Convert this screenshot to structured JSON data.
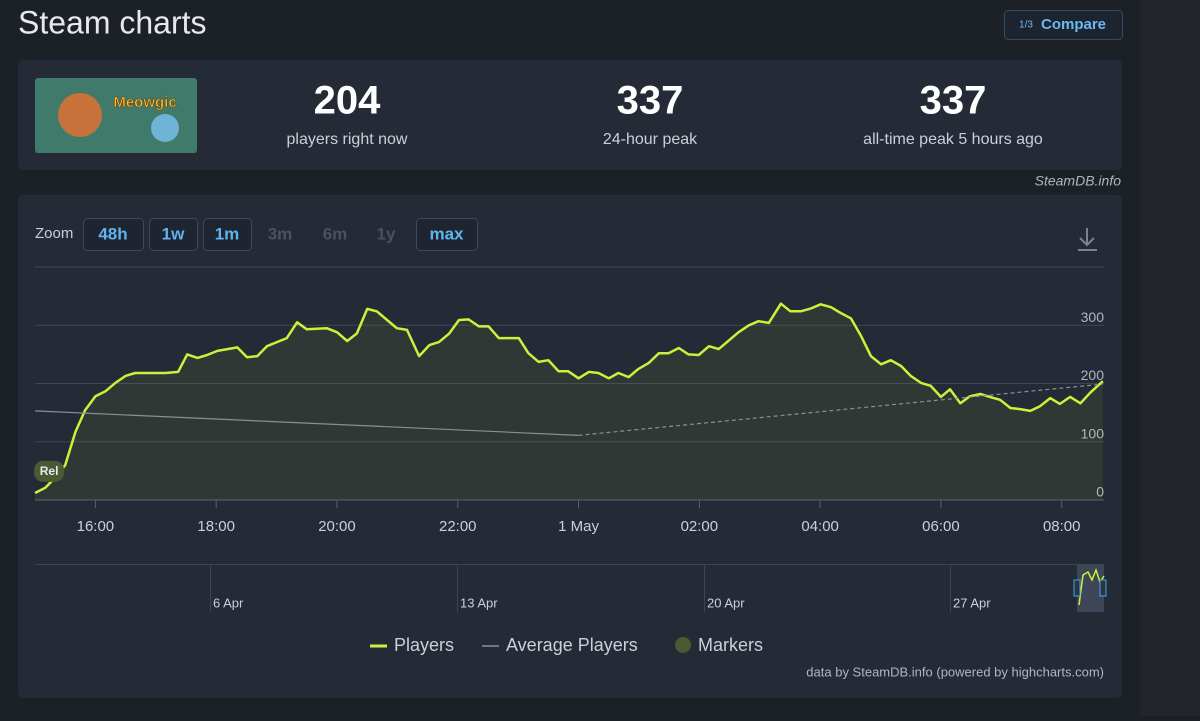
{
  "header": {
    "title": "Steam charts",
    "compare_icon": "1/3",
    "compare": "Compare"
  },
  "game": {
    "image_text": "Meowgic"
  },
  "stats": [
    {
      "value": "204",
      "label": "players right now"
    },
    {
      "value": "337",
      "label": "24-hour peak"
    },
    {
      "value": "337",
      "label": "all-time peak 5 hours ago"
    }
  ],
  "credit": "SteamDB.info",
  "zoom": {
    "label": "Zoom",
    "buttons": [
      {
        "label": "48h",
        "enabled": true
      },
      {
        "label": "1w",
        "enabled": true
      },
      {
        "label": "1m",
        "enabled": true
      },
      {
        "label": "3m",
        "enabled": false
      },
      {
        "label": "6m",
        "enabled": false
      },
      {
        "label": "1y",
        "enabled": false
      },
      {
        "label": "max",
        "enabled": true
      }
    ]
  },
  "chart_data": {
    "type": "line",
    "xlim": [
      15,
      32.7
    ],
    "xticks": [
      {
        "value": 16,
        "label": "16:00"
      },
      {
        "value": 18,
        "label": "18:00"
      },
      {
        "value": 20,
        "label": "20:00"
      },
      {
        "value": 22,
        "label": "22:00"
      },
      {
        "value": 24,
        "label": "1 May"
      },
      {
        "value": 26,
        "label": "02:00"
      },
      {
        "value": 28,
        "label": "04:00"
      },
      {
        "value": 30,
        "label": "06:00"
      },
      {
        "value": 32,
        "label": "08:00"
      }
    ],
    "ylim": [
      0,
      400
    ],
    "yticks": [
      0,
      100,
      200,
      300
    ],
    "grid": true,
    "series": [
      {
        "name": "Players",
        "color": "#cdf03a",
        "x": [
          15.0,
          15.17,
          15.34,
          15.5,
          15.67,
          15.83,
          16.0,
          16.17,
          16.33,
          16.5,
          16.66,
          16.91,
          17.16,
          17.37,
          17.52,
          17.69,
          17.85,
          18.02,
          18.35,
          18.51,
          18.68,
          18.84,
          19.17,
          19.34,
          19.5,
          19.83,
          20.0,
          20.17,
          20.33,
          20.5,
          20.66,
          20.83,
          20.99,
          21.16,
          21.36,
          21.53,
          21.69,
          21.86,
          22.02,
          22.18,
          22.35,
          22.51,
          22.68,
          23.01,
          23.17,
          23.34,
          23.5,
          23.67,
          23.83,
          24.0,
          24.17,
          24.33,
          24.5,
          24.66,
          24.83,
          24.99,
          25.16,
          25.33,
          25.49,
          25.66,
          25.82,
          25.99,
          26.16,
          26.32,
          26.49,
          26.65,
          26.82,
          26.98,
          27.15,
          27.35,
          27.51,
          27.68,
          27.85,
          28.01,
          28.18,
          28.34,
          28.51,
          28.68,
          28.84,
          29.01,
          29.17,
          29.34,
          29.5,
          29.67,
          29.83,
          30.0,
          30.15,
          30.32,
          30.48,
          30.65,
          30.81,
          30.98,
          31.15,
          31.31,
          31.48,
          31.64,
          31.81,
          31.97,
          32.14,
          32.31,
          32.47,
          32.68
        ],
        "values": [
          12,
          21,
          39,
          60,
          117,
          154,
          178,
          187,
          201,
          213,
          218,
          218,
          218,
          220,
          250,
          244,
          249,
          256,
          262,
          245,
          247,
          264,
          278,
          305,
          293,
          295,
          288,
          273,
          286,
          328,
          324,
          309,
          295,
          292,
          247,
          266,
          271,
          286,
          309,
          310,
          298,
          298,
          278,
          278,
          252,
          237,
          240,
          221,
          221,
          209,
          220,
          218,
          209,
          218,
          211,
          225,
          235,
          252,
          252,
          261,
          250,
          249,
          264,
          259,
          274,
          288,
          300,
          307,
          304,
          337,
          324,
          324,
          329,
          336,
          331,
          321,
          312,
          281,
          247,
          233,
          240,
          230,
          213,
          201,
          196,
          177,
          190,
          166,
          178,
          182,
          177,
          172,
          158,
          156,
          153,
          161,
          175,
          165,
          177,
          166,
          184,
          204
        ]
      },
      {
        "name": "Average Players",
        "color": "#8a8f96",
        "x": [
          15.0,
          24.0,
          32.68
        ],
        "values": [
          153,
          111,
          199
        ]
      },
      {
        "name": "Markers",
        "color": "#4a5a32",
        "x": [
          15.2
        ],
        "values": [
          50
        ],
        "labels": [
          "Rel"
        ]
      }
    ]
  },
  "navigator": {
    "labels": [
      "6 Apr",
      "13 Apr",
      "20 Apr",
      "27 Apr"
    ]
  },
  "footer": "data by SteamDB.info (powered by highcharts.com)"
}
